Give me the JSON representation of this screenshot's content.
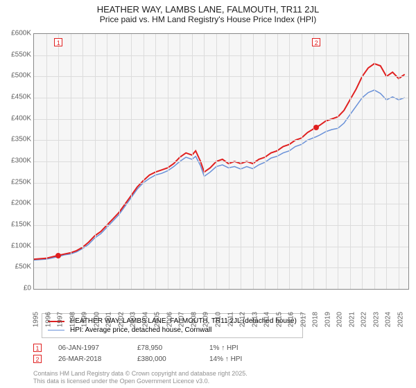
{
  "chart": {
    "title": "HEATHER WAY, LAMBS LANE, FALMOUTH, TR11 2JL",
    "subtitle": "Price paid vs. HM Land Registry's House Price Index (HPI)",
    "background_color": "#f6f6f6",
    "grid_color": "#dcdcdc",
    "border_color": "#888888",
    "title_fontsize": 13,
    "label_fontsize": 10,
    "x": {
      "min": 1995,
      "max": 2025.8,
      "ticks": [
        1995,
        1996,
        1997,
        1998,
        1999,
        2000,
        2001,
        2002,
        2003,
        2004,
        2005,
        2006,
        2007,
        2008,
        2009,
        2010,
        2011,
        2012,
        2013,
        2014,
        2015,
        2016,
        2017,
        2018,
        2019,
        2020,
        2021,
        2022,
        2023,
        2024,
        2025
      ]
    },
    "y": {
      "min": 0,
      "max": 600000,
      "ticks": [
        "£0",
        "£50K",
        "£100K",
        "£150K",
        "£200K",
        "£250K",
        "£300K",
        "£350K",
        "£400K",
        "£450K",
        "£500K",
        "£550K",
        "£600K"
      ],
      "tick_values": [
        0,
        50000,
        100000,
        150000,
        200000,
        250000,
        300000,
        350000,
        400000,
        450000,
        500000,
        550000,
        600000
      ]
    },
    "series": [
      {
        "name": "HEATHER WAY, LAMBS LANE, FALMOUTH, TR11 2JL (detached house)",
        "color": "#e02020",
        "width": 2,
        "data": [
          [
            1995,
            70000
          ],
          [
            1996,
            72000
          ],
          [
            1997,
            78950
          ],
          [
            1997.5,
            82000
          ],
          [
            1998,
            85000
          ],
          [
            1998.5,
            90000
          ],
          [
            1999,
            98000
          ],
          [
            1999.5,
            110000
          ],
          [
            2000,
            125000
          ],
          [
            2000.5,
            135000
          ],
          [
            2001,
            150000
          ],
          [
            2001.5,
            165000
          ],
          [
            2002,
            180000
          ],
          [
            2002.5,
            200000
          ],
          [
            2003,
            220000
          ],
          [
            2003.5,
            240000
          ],
          [
            2004,
            255000
          ],
          [
            2004.5,
            268000
          ],
          [
            2005,
            275000
          ],
          [
            2005.5,
            280000
          ],
          [
            2006,
            285000
          ],
          [
            2006.5,
            295000
          ],
          [
            2007,
            310000
          ],
          [
            2007.5,
            320000
          ],
          [
            2008,
            315000
          ],
          [
            2008.3,
            325000
          ],
          [
            2008.7,
            300000
          ],
          [
            2009,
            275000
          ],
          [
            2009.5,
            285000
          ],
          [
            2010,
            300000
          ],
          [
            2010.5,
            305000
          ],
          [
            2011,
            295000
          ],
          [
            2011.5,
            300000
          ],
          [
            2012,
            295000
          ],
          [
            2012.5,
            300000
          ],
          [
            2013,
            295000
          ],
          [
            2013.5,
            305000
          ],
          [
            2014,
            310000
          ],
          [
            2014.5,
            320000
          ],
          [
            2015,
            325000
          ],
          [
            2015.5,
            335000
          ],
          [
            2016,
            340000
          ],
          [
            2016.5,
            350000
          ],
          [
            2017,
            355000
          ],
          [
            2017.5,
            368000
          ],
          [
            2018.2,
            380000
          ],
          [
            2018.5,
            385000
          ],
          [
            2019,
            395000
          ],
          [
            2019.5,
            400000
          ],
          [
            2020,
            405000
          ],
          [
            2020.5,
            420000
          ],
          [
            2021,
            445000
          ],
          [
            2021.5,
            470000
          ],
          [
            2022,
            500000
          ],
          [
            2022.5,
            520000
          ],
          [
            2023,
            530000
          ],
          [
            2023.5,
            525000
          ],
          [
            2024,
            500000
          ],
          [
            2024.5,
            510000
          ],
          [
            2025,
            495000
          ],
          [
            2025.5,
            505000
          ]
        ]
      },
      {
        "name": "HPI: Average price, detached house, Cornwall",
        "color": "#6890d8",
        "width": 1.5,
        "data": [
          [
            1995,
            68000
          ],
          [
            1996,
            70000
          ],
          [
            1997,
            76000
          ],
          [
            1997.5,
            80000
          ],
          [
            1998,
            82000
          ],
          [
            1998.5,
            87000
          ],
          [
            1999,
            95000
          ],
          [
            1999.5,
            105000
          ],
          [
            2000,
            120000
          ],
          [
            2000.5,
            130000
          ],
          [
            2001,
            145000
          ],
          [
            2001.5,
            160000
          ],
          [
            2002,
            175000
          ],
          [
            2002.5,
            195000
          ],
          [
            2003,
            215000
          ],
          [
            2003.5,
            235000
          ],
          [
            2004,
            250000
          ],
          [
            2004.5,
            260000
          ],
          [
            2005,
            268000
          ],
          [
            2005.5,
            272000
          ],
          [
            2006,
            278000
          ],
          [
            2006.5,
            288000
          ],
          [
            2007,
            300000
          ],
          [
            2007.5,
            310000
          ],
          [
            2008,
            305000
          ],
          [
            2008.3,
            312000
          ],
          [
            2008.7,
            290000
          ],
          [
            2009,
            265000
          ],
          [
            2009.5,
            275000
          ],
          [
            2010,
            288000
          ],
          [
            2010.5,
            292000
          ],
          [
            2011,
            285000
          ],
          [
            2011.5,
            288000
          ],
          [
            2012,
            282000
          ],
          [
            2012.5,
            288000
          ],
          [
            2013,
            283000
          ],
          [
            2013.5,
            292000
          ],
          [
            2014,
            298000
          ],
          [
            2014.5,
            308000
          ],
          [
            2015,
            312000
          ],
          [
            2015.5,
            320000
          ],
          [
            2016,
            325000
          ],
          [
            2016.5,
            335000
          ],
          [
            2017,
            340000
          ],
          [
            2017.5,
            350000
          ],
          [
            2018.2,
            358000
          ],
          [
            2018.5,
            362000
          ],
          [
            2019,
            370000
          ],
          [
            2019.5,
            375000
          ],
          [
            2020,
            378000
          ],
          [
            2020.5,
            390000
          ],
          [
            2021,
            410000
          ],
          [
            2021.5,
            430000
          ],
          [
            2022,
            450000
          ],
          [
            2022.5,
            462000
          ],
          [
            2023,
            468000
          ],
          [
            2023.5,
            460000
          ],
          [
            2024,
            445000
          ],
          [
            2024.5,
            452000
          ],
          [
            2025,
            445000
          ],
          [
            2025.5,
            450000
          ]
        ]
      }
    ],
    "sale_points": [
      {
        "n": "1",
        "year": 1997.02,
        "value": 78950,
        "color": "#e02020"
      },
      {
        "n": "2",
        "year": 2018.23,
        "value": 380000,
        "color": "#e02020"
      }
    ]
  },
  "legend": {
    "items": [
      {
        "label": "HEATHER WAY, LAMBS LANE, FALMOUTH, TR11 2JL (detached house)",
        "color": "#e02020",
        "thick": 2
      },
      {
        "label": "HPI: Average price, detached house, Cornwall",
        "color": "#6890d8",
        "thick": 1.5
      }
    ]
  },
  "points_table": [
    {
      "n": "1",
      "color": "#e02020",
      "date": "06-JAN-1997",
      "price": "£78,950",
      "hpi": "1% ↑ HPI"
    },
    {
      "n": "2",
      "color": "#e02020",
      "date": "26-MAR-2018",
      "price": "£380,000",
      "hpi": "14% ↑ HPI"
    }
  ],
  "attribution": {
    "line1": "Contains HM Land Registry data © Crown copyright and database right 2025.",
    "line2": "This data is licensed under the Open Government Licence v3.0."
  }
}
